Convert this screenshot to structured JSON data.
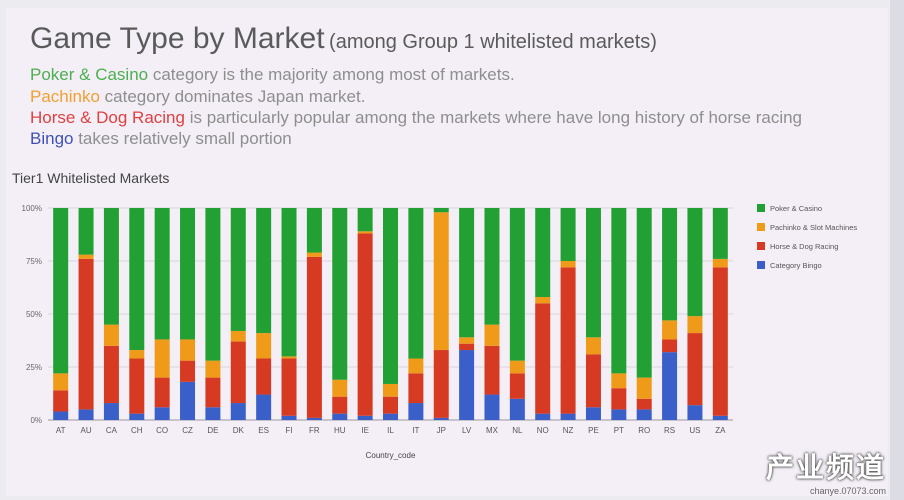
{
  "header": {
    "title": "Game Type by Market",
    "subtitle": "(among Group 1 whitelisted markets)",
    "notes": [
      {
        "key": "Poker & Casino",
        "rest": " category is the majority among most of markets.",
        "color": "#4caf50"
      },
      {
        "key": "Pachinko",
        "rest": " category dominates Japan market.",
        "color": "#f0a030"
      },
      {
        "key": "Horse & Dog Racing",
        "rest": " is particularly popular among the markets where have long history of horse racing",
        "color": "#e04040"
      },
      {
        "key": "Bingo",
        "rest": " takes relatively small portion",
        "color": "#3f51b5"
      }
    ]
  },
  "watermark": {
    "big": "产业频道",
    "small": "chanye.07073.com"
  },
  "chart_data": {
    "type": "bar",
    "stacked": true,
    "title": "Tier1 Whitelisted Markets",
    "xlabel": "Country_code",
    "ylabel": "",
    "y_ticks": [
      "0%",
      "25%",
      "50%",
      "75%",
      "100%"
    ],
    "ylim": [
      0,
      100
    ],
    "legend_position": "right",
    "categories": [
      "AT",
      "AU",
      "CA",
      "CH",
      "CO",
      "CZ",
      "DE",
      "DK",
      "ES",
      "FI",
      "FR",
      "HU",
      "IE",
      "IL",
      "IT",
      "JP",
      "LV",
      "MX",
      "NL",
      "NO",
      "NZ",
      "PE",
      "PT",
      "RO",
      "RS",
      "US",
      "ZA"
    ],
    "series": [
      {
        "name": "Category Bingo",
        "color": "#3a5fc8",
        "values": [
          4,
          5,
          8,
          3,
          6,
          18,
          6,
          8,
          12,
          2,
          1,
          3,
          2,
          3,
          8,
          1,
          33,
          12,
          10,
          3,
          3,
          6,
          5,
          5,
          32,
          7,
          2
        ]
      },
      {
        "name": "Horse & Dog Racing",
        "color": "#d63a22",
        "values": [
          10,
          71,
          27,
          26,
          14,
          10,
          14,
          29,
          17,
          27,
          76,
          8,
          86,
          8,
          14,
          32,
          3,
          23,
          12,
          52,
          69,
          25,
          10,
          5,
          6,
          34,
          70
        ]
      },
      {
        "name": "Pachinko & Slot Machines",
        "color": "#f09a1a",
        "values": [
          8,
          2,
          10,
          4,
          18,
          10,
          8,
          5,
          12,
          1,
          2,
          8,
          1,
          6,
          7,
          65,
          3,
          10,
          6,
          3,
          3,
          8,
          7,
          10,
          9,
          8,
          4
        ]
      },
      {
        "name": "Poker & Casino",
        "color": "#22a033",
        "values": [
          78,
          22,
          55,
          67,
          62,
          62,
          72,
          58,
          59,
          70,
          21,
          81,
          11,
          83,
          71,
          2,
          61,
          55,
          72,
          42,
          25,
          61,
          78,
          80,
          53,
          51,
          24
        ]
      }
    ]
  }
}
